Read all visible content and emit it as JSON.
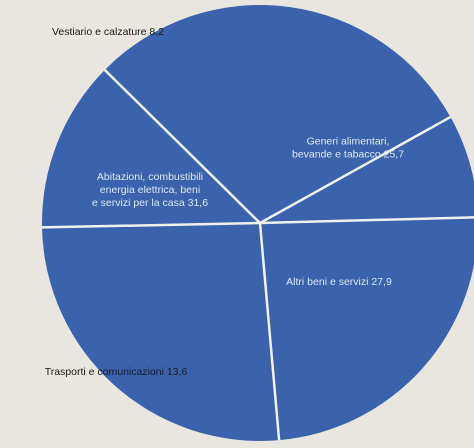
{
  "chart_data": {
    "type": "pie",
    "title": "",
    "slices": [
      {
        "label_lines": [
          "Generi alimentari,",
          "bevande e tabacco 25,7"
        ],
        "value": 25.7
      },
      {
        "label_lines": [
          "Altri beni e servizi 27,9"
        ],
        "value": 27.9
      },
      {
        "label_lines": [
          "Trasporti e comunicazioni 13,6"
        ],
        "value": 13.6
      },
      {
        "label_lines": [
          "Abitazioni, combustibili",
          "energia elettrica, beni",
          "e servizi per la casa 31,6"
        ],
        "value": 31.6
      },
      {
        "label_lines": [
          "Vestiario e calzature 8,2"
        ],
        "value": 8.2
      }
    ],
    "colors": {
      "slice_fill": "#3a62ad",
      "separator": "#f2f2ec",
      "background": "#e8e6df"
    }
  }
}
